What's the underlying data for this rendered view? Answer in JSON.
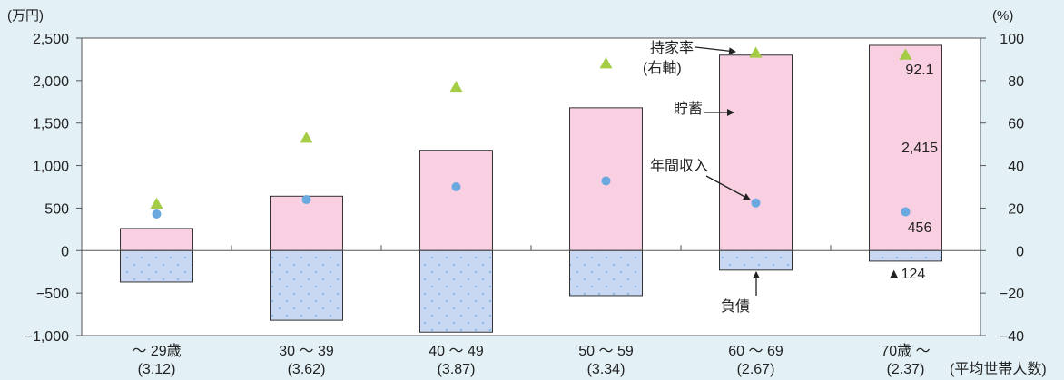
{
  "chart_data": {
    "type": "bar",
    "categories": [
      "～ 29歳",
      "30 ～ 39",
      "40 ～ 49",
      "50 ～ 59",
      "60 ～ 69",
      "70歳 ～"
    ],
    "household_sizes": [
      "(3.12)",
      "(3.62)",
      "(3.87)",
      "(3.34)",
      "(2.67)",
      "(2.37)"
    ],
    "household_size_label": "(平均世帯人数)",
    "left_unit": "(万円)",
    "right_unit": "(%)",
    "ylim_left": [
      -1000,
      2500
    ],
    "ylim_right": [
      -40,
      100
    ],
    "left_ticks": [
      2500,
      2000,
      1500,
      1000,
      500,
      0,
      -500,
      -1000
    ],
    "left_tick_labels": [
      "2,500",
      "2,000",
      "1,500",
      "1,000",
      "500",
      "0",
      "−500",
      "−1,000"
    ],
    "right_ticks": [
      100,
      80,
      60,
      40,
      20,
      0,
      -20,
      -40
    ],
    "right_tick_labels": [
      "100",
      "80",
      "60",
      "40",
      "20",
      "0",
      "−20",
      "−40"
    ],
    "series": [
      {
        "name": "貯蓄",
        "axis": "left",
        "values": [
          260,
          640,
          1180,
          1680,
          2300,
          2415
        ]
      },
      {
        "name": "負債",
        "axis": "left",
        "values": [
          -370,
          -820,
          -960,
          -530,
          -230,
          -124
        ]
      },
      {
        "name": "年間収入",
        "axis": "left",
        "values": [
          430,
          600,
          750,
          820,
          560,
          456
        ]
      },
      {
        "name": "持家率",
        "axis": "right",
        "values": [
          22,
          53,
          77,
          88,
          93,
          92.1
        ]
      }
    ],
    "labels": {
      "homeownership_l1": "持家率",
      "homeownership_l2": "(右軸)",
      "savings": "貯蓄",
      "income": "年間収入",
      "debt": "負債",
      "last_rate": "92.1",
      "last_savings": "2,415",
      "last_income": "456",
      "last_debt": "▲124"
    },
    "colors": {
      "savings": "#f9cfe2",
      "debt": "#c8d8f2",
      "debt_dot": "#8fb6e6",
      "income": "#6aa9e0",
      "homeownership": "#a4cc45",
      "plot_bg": "#ffffff",
      "background": "#e3f1f7"
    }
  }
}
